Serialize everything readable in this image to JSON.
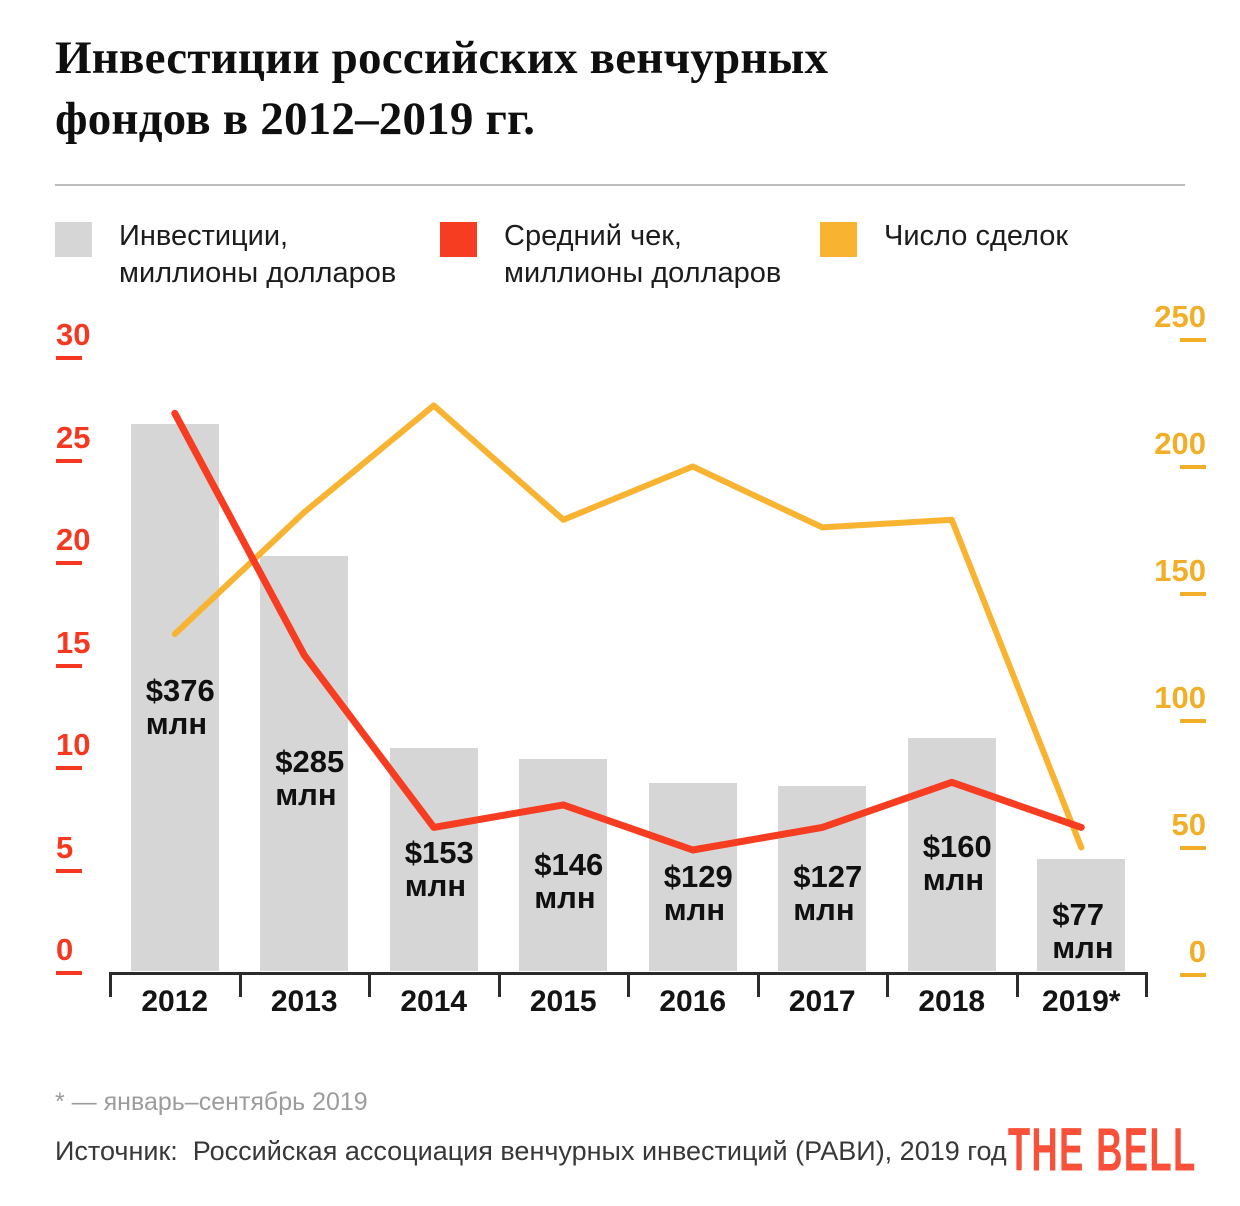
{
  "header": {
    "title_lines": [
      "Инвестиции российских венчурных",
      "фондов в 2012–2019 гг."
    ]
  },
  "legend": {
    "items": [
      {
        "name": "investments",
        "swatch_color": "#d6d6d6",
        "lines": [
          "Инвестиции,",
          "миллионы долларов"
        ]
      },
      {
        "name": "average-check",
        "swatch_color": "#f63d22",
        "lines": [
          "Средний чек,",
          "миллионы долларов"
        ]
      },
      {
        "name": "deals-count",
        "swatch_color": "#f8b331",
        "lines": [
          "Число сделок"
        ]
      }
    ]
  },
  "chart_data": {
    "type": "bar+line",
    "categories": [
      "2012",
      "2013",
      "2014",
      "2015",
      "2016",
      "2017",
      "2018",
      "2019*"
    ],
    "series": [
      {
        "name": "Инвестиции, миллионы долларов",
        "type": "bar",
        "values": [
          376,
          285,
          153,
          146,
          129,
          127,
          160,
          77
        ],
        "color": "#d6d6d6",
        "bar_label_prefix": "$",
        "bar_label_suffix": "млн"
      },
      {
        "name": "Средний чек, миллионы долларов",
        "type": "line",
        "axis": "left",
        "values": [
          27.4,
          15.6,
          7.2,
          8.3,
          6.1,
          7.2,
          9.4,
          7.2
        ],
        "color": "#f63d22"
      },
      {
        "name": "Число сделок",
        "type": "line",
        "axis": "right",
        "values": [
          135,
          183,
          225,
          180,
          201,
          177,
          180,
          51
        ],
        "color": "#f8b331"
      }
    ],
    "left_axis": {
      "ticks": [
        0,
        5,
        10,
        15,
        20,
        25,
        30
      ],
      "range": [
        0,
        30
      ],
      "color": "#f5381f"
    },
    "right_axis": {
      "ticks": [
        0,
        50,
        100,
        150,
        200,
        250
      ],
      "range": [
        0,
        250
      ],
      "color": "#f2ae27"
    },
    "grid": false,
    "legend_position": "top"
  },
  "footer": {
    "note": "* — январь–сентябрь 2019",
    "source": "Источник:  Российская ассоциация венчурных инвестиций (РАВИ), 2019 год",
    "logo_text": "THE BELL",
    "logo_color": "#f9503a"
  }
}
